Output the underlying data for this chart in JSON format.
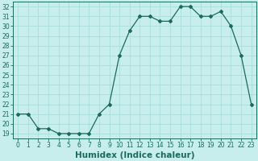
{
  "x": [
    0,
    1,
    2,
    3,
    4,
    5,
    6,
    7,
    8,
    9,
    10,
    11,
    12,
    13,
    14,
    15,
    16,
    17,
    18,
    19,
    20,
    21,
    22,
    23
  ],
  "y": [
    21,
    21,
    19.5,
    19.5,
    19,
    19,
    19,
    19,
    21,
    22,
    27,
    29.5,
    31,
    31,
    30.5,
    30.5,
    32,
    32,
    31,
    31,
    31.5,
    30,
    27,
    22
  ],
  "line_color": "#1a6b5a",
  "marker": "D",
  "marker_size": 2,
  "bg_color": "#c8eded",
  "grid_color": "#aadddd",
  "xlabel": "Humidex (Indice chaleur)",
  "xlim": [
    -0.5,
    23.5
  ],
  "ylim": [
    18.5,
    32.5
  ],
  "yticks": [
    19,
    20,
    21,
    22,
    23,
    24,
    25,
    26,
    27,
    28,
    29,
    30,
    31,
    32
  ],
  "xticks": [
    0,
    1,
    2,
    3,
    4,
    5,
    6,
    7,
    8,
    9,
    10,
    11,
    12,
    13,
    14,
    15,
    16,
    17,
    18,
    19,
    20,
    21,
    22,
    23
  ],
  "tick_label_size": 5.5,
  "xlabel_fontsize": 7.5
}
